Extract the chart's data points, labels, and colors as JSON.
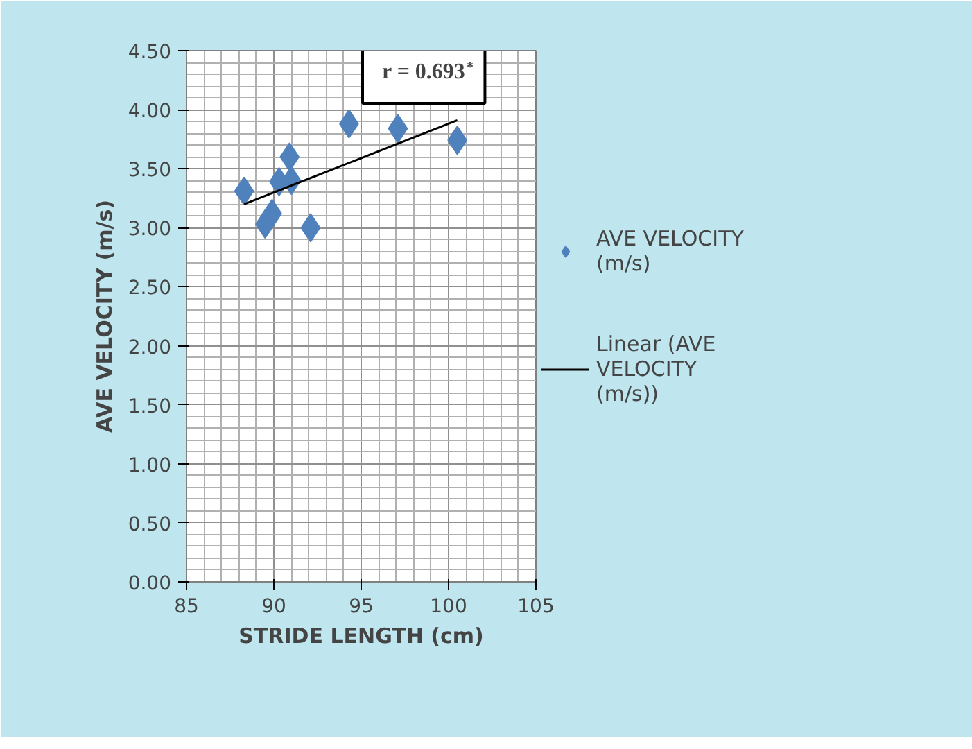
{
  "chart_data": {
    "type": "scatter",
    "xlabel": "STRIDE LENGTH (cm)",
    "ylabel": "AVE VELOCITY (m/s)",
    "xlim": [
      85,
      105
    ],
    "xticks": [
      85,
      90,
      95,
      100,
      105
    ],
    "ylim": [
      0,
      4.5
    ],
    "yticks": [
      {
        "value": 0,
        "label": "0.00"
      },
      {
        "value": 0.5,
        "label": "0.50"
      },
      {
        "value": 1,
        "label": "1.00"
      },
      {
        "value": 1.5,
        "label": "1.50"
      },
      {
        "value": 2,
        "label": "2.00"
      },
      {
        "value": 2.5,
        "label": "2.50"
      },
      {
        "value": 3,
        "label": "3.00"
      },
      {
        "value": 3.5,
        "label": "3.50"
      },
      {
        "value": 4,
        "label": "4.00"
      },
      {
        "value": 4.5,
        "label": "4.50"
      }
    ],
    "grid": true,
    "legend": "right",
    "marker": "diamond",
    "annotations": [
      "r = 0.693$^{*}$"
    ],
    "series": [
      {
        "name": "AVE VELOCITY (m/s)",
        "color": "#4f81bd",
        "x": [
          88.3,
          90.9,
          90.3,
          91.0,
          89.9,
          89.5,
          92.1,
          94.3,
          97.1,
          100.5
        ],
        "values": [
          3.31,
          3.6,
          3.39,
          3.4,
          3.12,
          3.03,
          3.0,
          3.88,
          3.84,
          3.74
        ]
      },
      {
        "name": "Linear (AVE VELOCITY (m/s))",
        "type": "line",
        "color": "#000000",
        "x": [
          88.3,
          100.5
        ],
        "values": [
          3.2,
          3.91
        ],
        "marker": "none"
      }
    ]
  }
}
